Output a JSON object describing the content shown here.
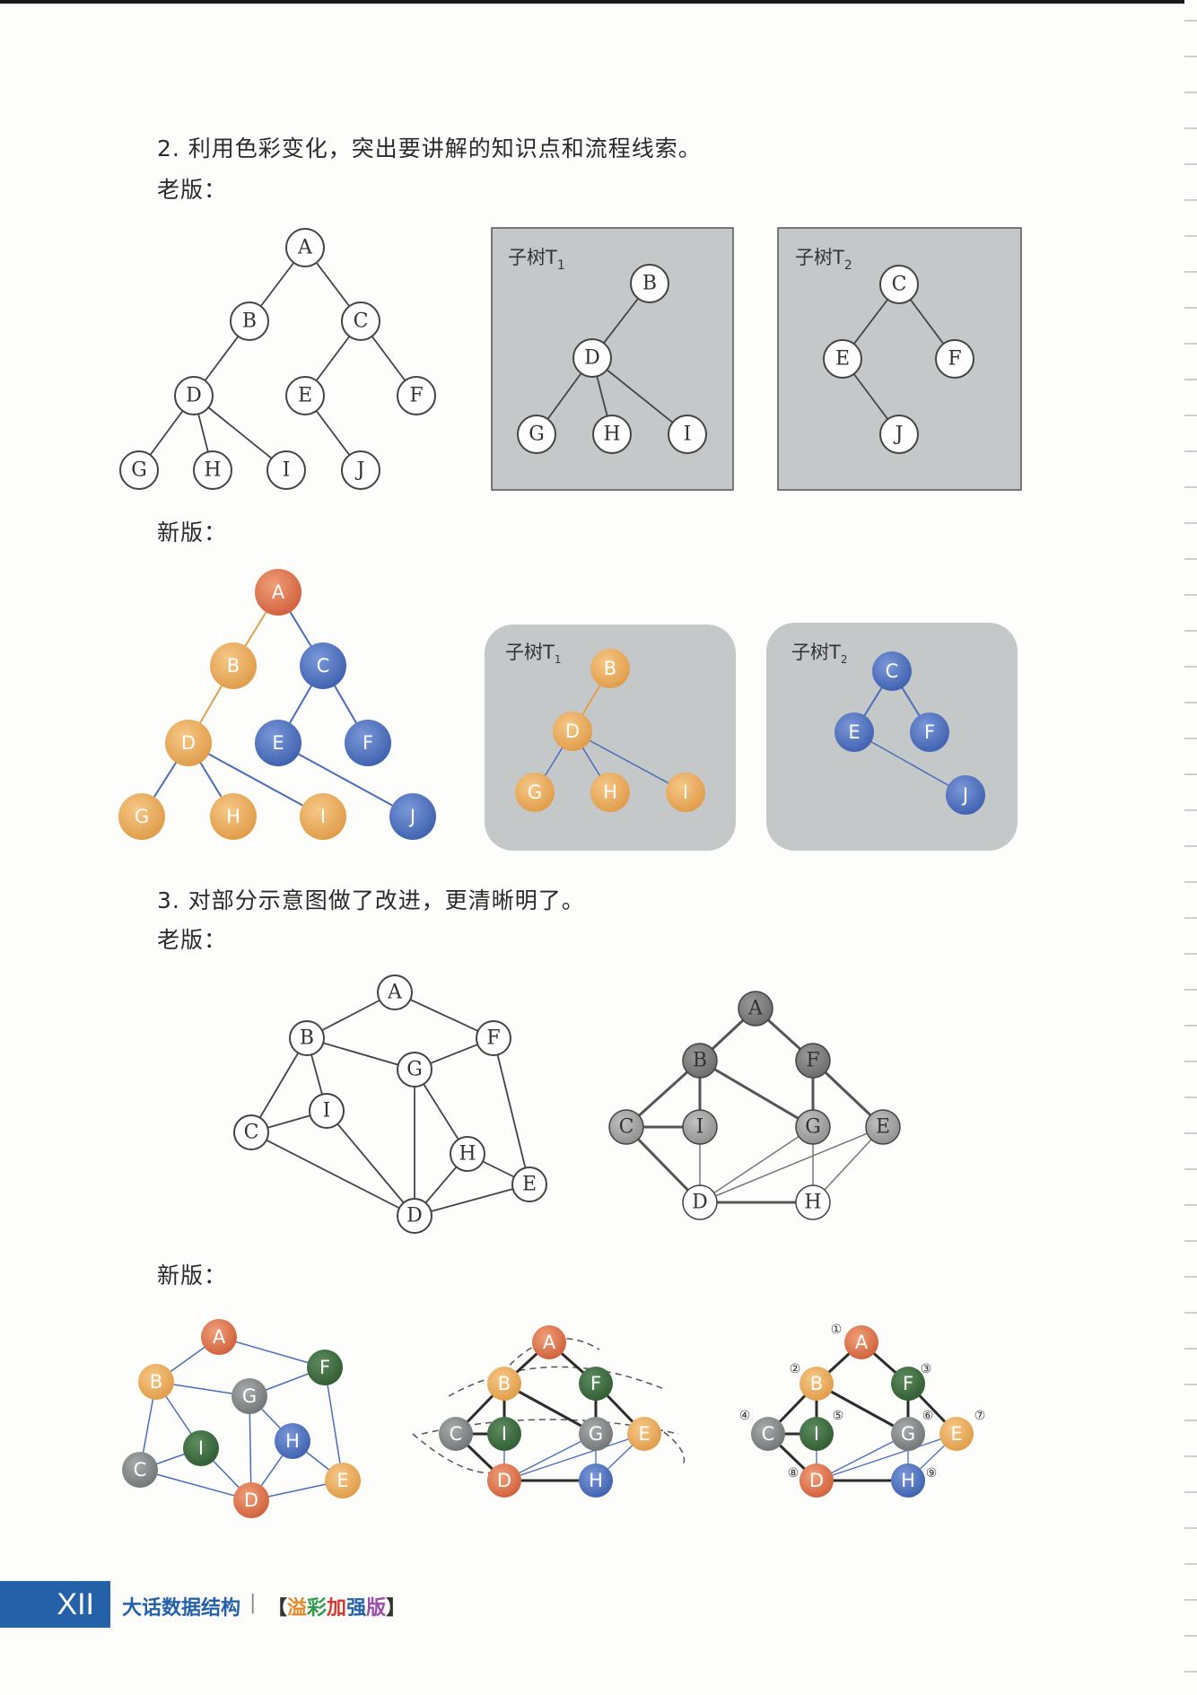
{
  "section2": {
    "title": "2.  利用色彩变化，突出要讲解的知识点和流程线索。",
    "old": "老版：",
    "new": "新版："
  },
  "section3": {
    "title": "3.  对部分示意图做了改进，更清晰明了。",
    "old": "老版：",
    "new": "新版："
  },
  "subtree_labels": {
    "t1": "子树T",
    "t1_sub": "1",
    "t2": "子树T",
    "t2_sub": "2"
  },
  "circled_numbers": [
    "①",
    "②",
    "③",
    "④",
    "⑤",
    "⑥",
    "⑦",
    "⑧",
    "⑨"
  ],
  "colors": {
    "orange_red": "#d9704a",
    "orange": "#e5a456",
    "blue": "#4a6cb9",
    "green": "#3f6a3f",
    "gray": "#7f8282",
    "box_gray": "#c5c8c9",
    "footer_blue": "#2461a8"
  },
  "footer": {
    "page_number": "XII",
    "book_title": "大话数据结构",
    "separator": "|",
    "edition_open": "【",
    "edition_chars": [
      "溢",
      "彩",
      "加",
      "强",
      "版"
    ],
    "edition_colors": [
      "#e58a2c",
      "#2e9b4c",
      "#d6372f",
      "#2461a8",
      "#9a4ea8"
    ],
    "edition_close": "】"
  }
}
